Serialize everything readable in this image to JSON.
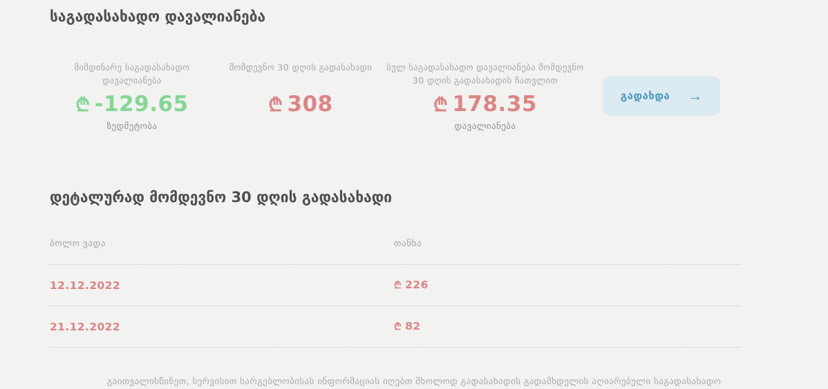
{
  "page": {
    "title": "საგადასახადო დავალიანება"
  },
  "summary": {
    "cards": [
      {
        "label": "მიმდინარე საგადასახადო დავალიანება",
        "currency": "₾",
        "value": "-129.65",
        "sublabel": "ზედმეტობა",
        "status": "positive"
      },
      {
        "label": "მომდევნო 30 დღის გადასახადი",
        "currency": "₾",
        "value": "308",
        "sublabel": "",
        "status": "negative"
      },
      {
        "label": "სულ საგადასახადო დავალიანება მომდევნო 30 დღის გადასახადის ჩათვლით",
        "currency": "₾",
        "value": "178.35",
        "sublabel": "დავალიანება",
        "status": "negative"
      }
    ],
    "pay_button": {
      "label": "გადახდა",
      "arrow_icon": "→"
    }
  },
  "details": {
    "title": "დეტალურად მომდევნო 30 დღის გადასახადი",
    "table": {
      "headers": {
        "due_date": "ბოლო ვადა",
        "amount": "თანხა"
      },
      "rows": [
        {
          "date": "12.12.2022",
          "currency": "₾",
          "amount": "226"
        },
        {
          "date": "21.12.2022",
          "currency": "₾",
          "amount": "82"
        }
      ]
    }
  },
  "footer": {
    "notice": "გაითვალისწინეთ, სერვისით სარგებლობისას ინფორმაციას იღებთ მხოლოდ გადასახადის გადამხდელის აღიარებული საგადასახადო"
  },
  "colors": {
    "background": "#f2f2f1",
    "positive_green": "#85d694",
    "negative_red": "#db8585",
    "accent_blue": "#4a94bd",
    "button_bg": "#dcebf2",
    "heading_text": "#4f4f4f",
    "muted_text": "#a6a6a6"
  }
}
